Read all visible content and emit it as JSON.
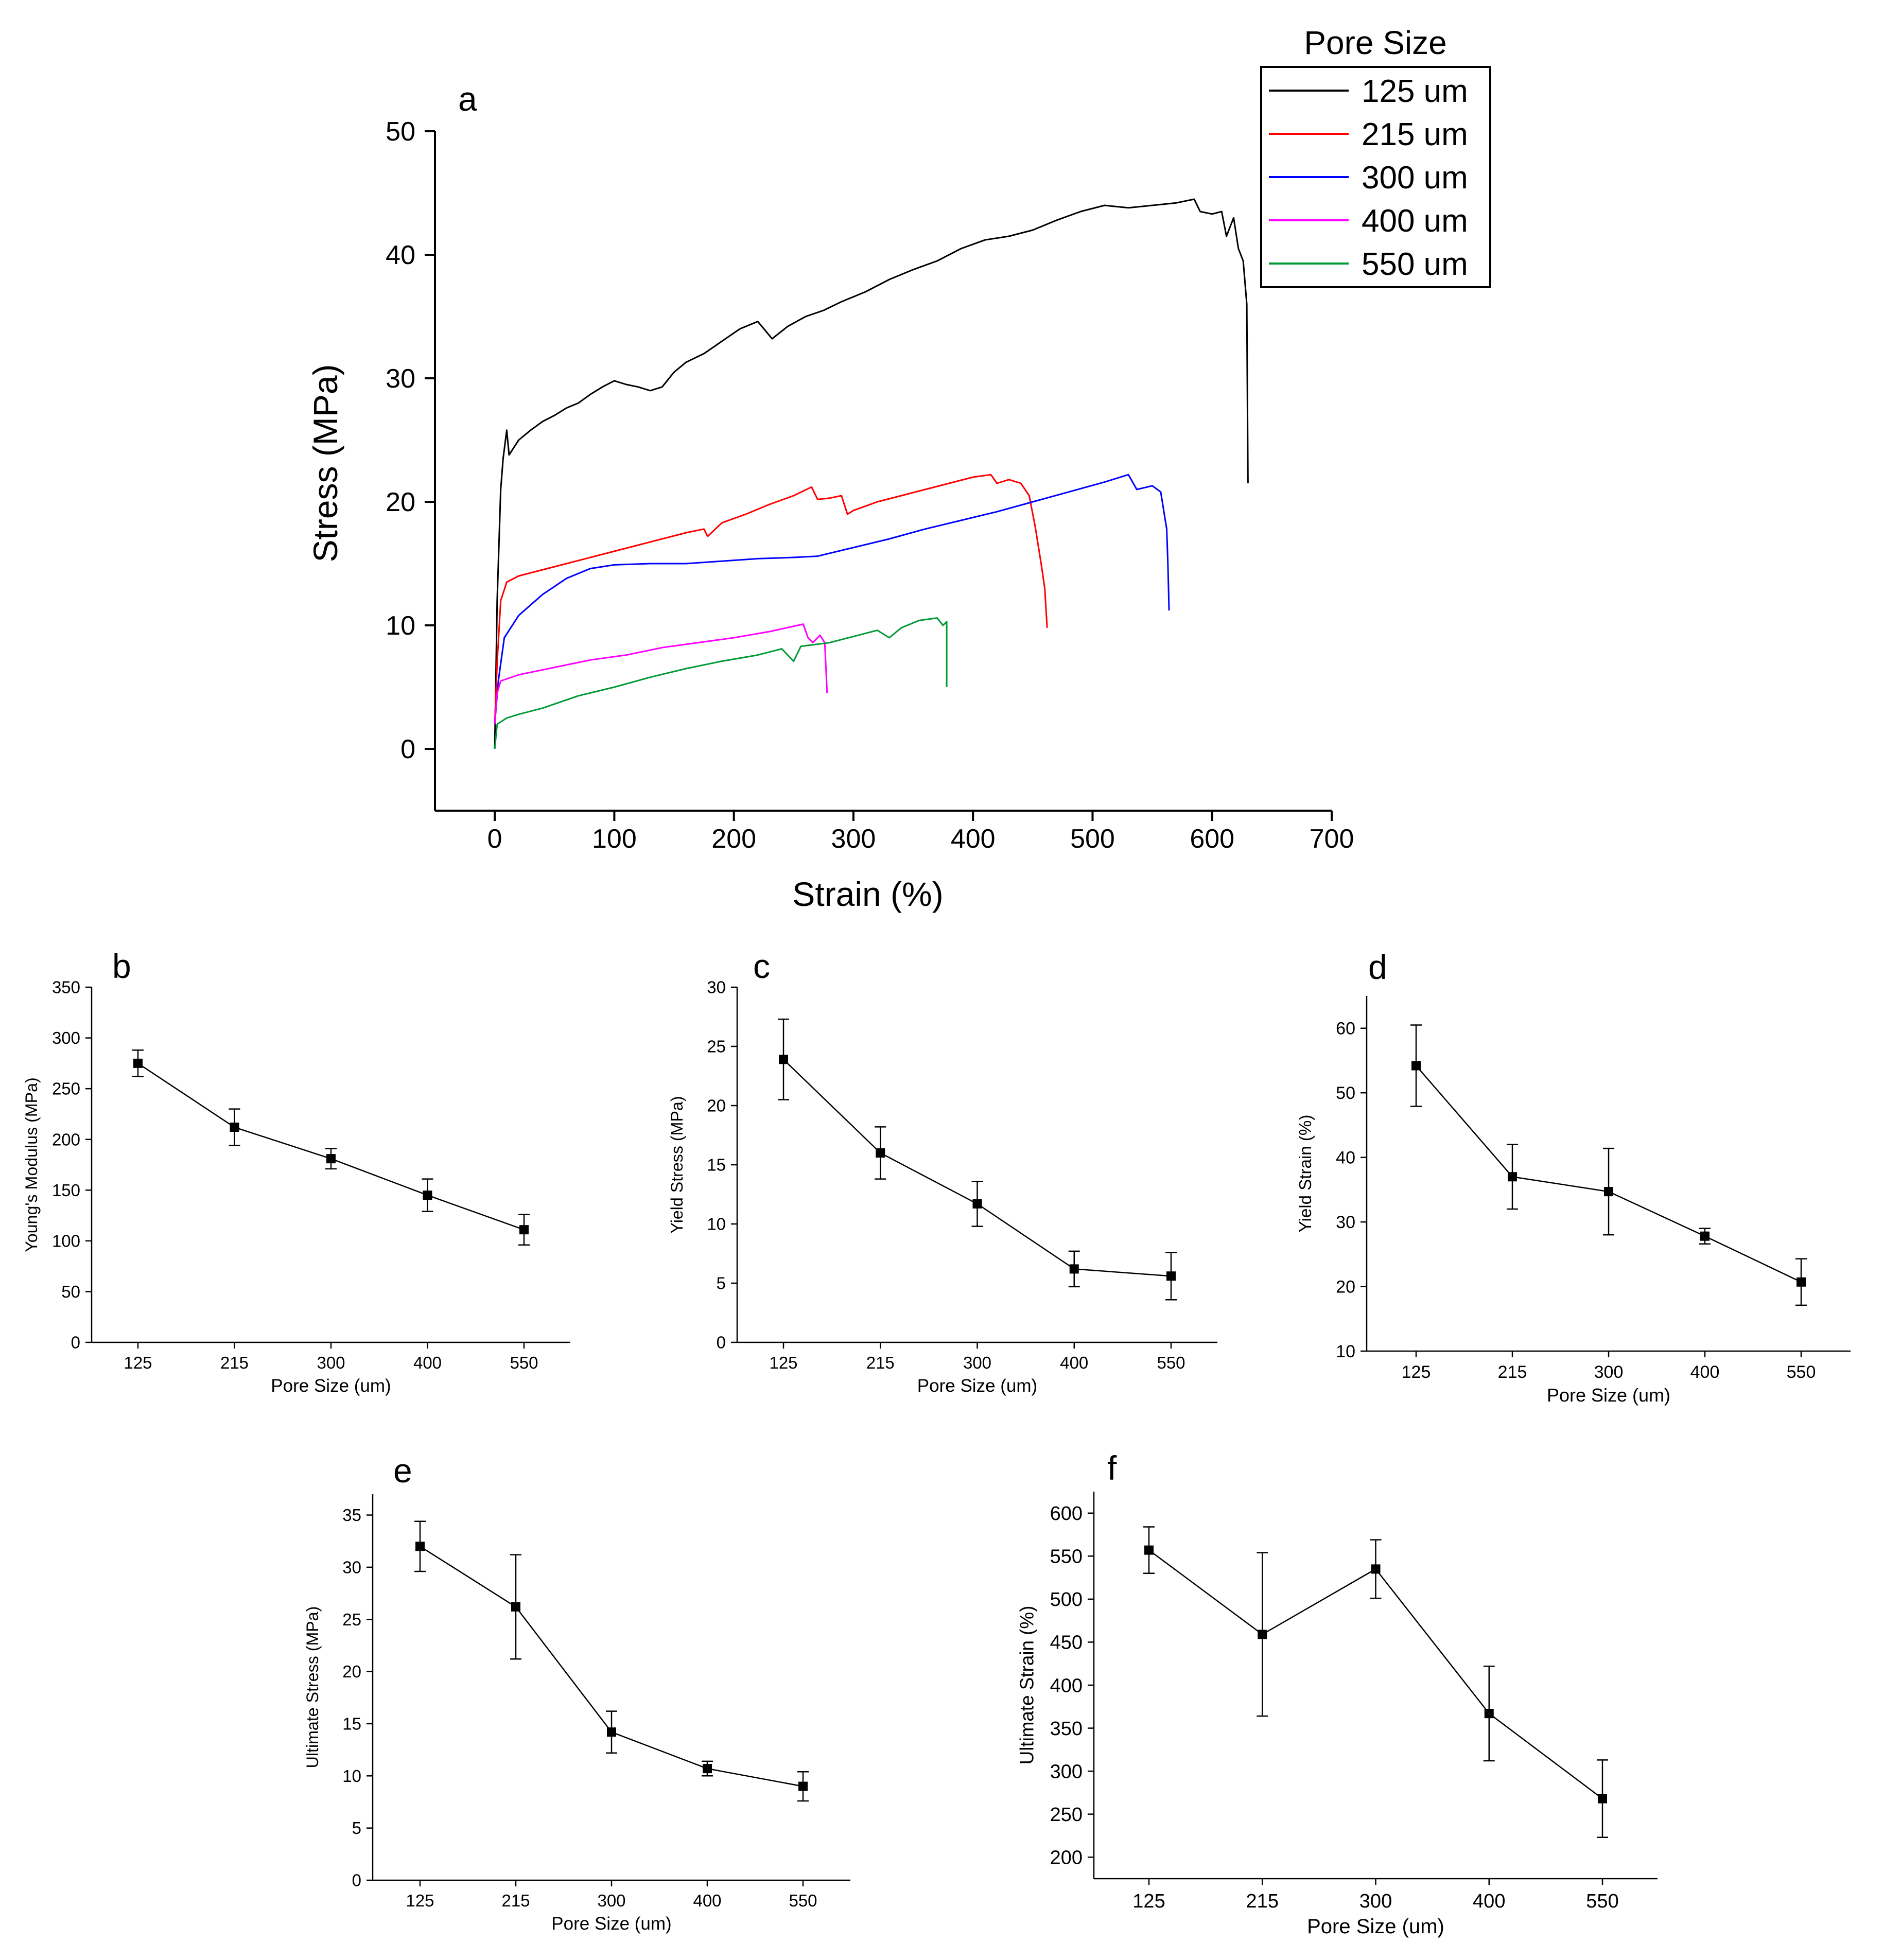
{
  "figure": {
    "background": "#ffffff",
    "axis_color": "#000000"
  },
  "chart_data": [
    {
      "id": "a",
      "panel_label": "a",
      "type": "line",
      "title": "",
      "xlabel": "Strain (%)",
      "ylabel": "Stress (MPa)",
      "xlim": [
        -50,
        700
      ],
      "ylim": [
        -5,
        50
      ],
      "xticks": [
        0,
        100,
        200,
        300,
        400,
        500,
        600,
        700
      ],
      "yticks": [
        0,
        10,
        20,
        30,
        40,
        50
      ],
      "grid": false,
      "legend": {
        "title": "Pore Size",
        "position": "top-right"
      },
      "series": [
        {
          "name": "125 um",
          "color": "#000000",
          "points": [
            [
              0,
              0
            ],
            [
              2,
              12
            ],
            [
              5,
              21
            ],
            [
              7,
              23.5
            ],
            [
              10,
              25.8
            ],
            [
              12,
              23.8
            ],
            [
              20,
              25
            ],
            [
              30,
              25.8
            ],
            [
              40,
              26.5
            ],
            [
              50,
              27
            ],
            [
              60,
              27.6
            ],
            [
              70,
              28
            ],
            [
              80,
              28.7
            ],
            [
              90,
              29.3
            ],
            [
              100,
              29.8
            ],
            [
              110,
              29.5
            ],
            [
              120,
              29.3
            ],
            [
              130,
              29
            ],
            [
              140,
              29.3
            ],
            [
              150,
              30.5
            ],
            [
              160,
              31.3
            ],
            [
              175,
              32
            ],
            [
              190,
              33
            ],
            [
              205,
              34
            ],
            [
              220,
              34.6
            ],
            [
              232,
              33.2
            ],
            [
              245,
              34.2
            ],
            [
              260,
              35
            ],
            [
              275,
              35.5
            ],
            [
              290,
              36.2
            ],
            [
              310,
              37
            ],
            [
              330,
              38
            ],
            [
              350,
              38.8
            ],
            [
              370,
              39.5
            ],
            [
              390,
              40.5
            ],
            [
              410,
              41.2
            ],
            [
              430,
              41.5
            ],
            [
              450,
              42
            ],
            [
              470,
              42.8
            ],
            [
              490,
              43.5
            ],
            [
              510,
              44
            ],
            [
              530,
              43.8
            ],
            [
              550,
              44
            ],
            [
              570,
              44.2
            ],
            [
              585,
              44.5
            ],
            [
              590,
              43.5
            ],
            [
              600,
              43.3
            ],
            [
              608,
              43.5
            ],
            [
              612,
              41.5
            ],
            [
              618,
              43
            ],
            [
              622,
              40.5
            ],
            [
              626,
              39.5
            ],
            [
              629,
              36
            ],
            [
              630,
              21.5
            ]
          ]
        },
        {
          "name": "215 um",
          "color": "#ff0000",
          "points": [
            [
              0,
              2
            ],
            [
              2,
              7
            ],
            [
              5,
              12
            ],
            [
              10,
              13.5
            ],
            [
              20,
              14
            ],
            [
              40,
              14.5
            ],
            [
              60,
              15
            ],
            [
              80,
              15.5
            ],
            [
              100,
              16
            ],
            [
              120,
              16.5
            ],
            [
              140,
              17
            ],
            [
              160,
              17.5
            ],
            [
              175,
              17.8
            ],
            [
              178,
              17.2
            ],
            [
              190,
              18.3
            ],
            [
              210,
              19
            ],
            [
              230,
              19.8
            ],
            [
              250,
              20.5
            ],
            [
              265,
              21.2
            ],
            [
              270,
              20.2
            ],
            [
              280,
              20.3
            ],
            [
              290,
              20.5
            ],
            [
              295,
              19
            ],
            [
              300,
              19.3
            ],
            [
              320,
              20
            ],
            [
              340,
              20.5
            ],
            [
              360,
              21
            ],
            [
              380,
              21.5
            ],
            [
              400,
              22
            ],
            [
              415,
              22.2
            ],
            [
              420,
              21.5
            ],
            [
              430,
              21.8
            ],
            [
              440,
              21.5
            ],
            [
              447,
              20.5
            ],
            [
              452,
              18
            ],
            [
              457,
              15
            ],
            [
              460,
              13
            ],
            [
              462,
              9.8
            ]
          ]
        },
        {
          "name": "300 um",
          "color": "#0000ff",
          "points": [
            [
              0,
              2
            ],
            [
              3,
              5.5
            ],
            [
              8,
              9
            ],
            [
              20,
              10.8
            ],
            [
              40,
              12.5
            ],
            [
              60,
              13.8
            ],
            [
              80,
              14.6
            ],
            [
              100,
              14.9
            ],
            [
              130,
              15
            ],
            [
              160,
              15
            ],
            [
              190,
              15.2
            ],
            [
              220,
              15.4
            ],
            [
              250,
              15.5
            ],
            [
              270,
              15.6
            ],
            [
              300,
              16.3
            ],
            [
              330,
              17
            ],
            [
              360,
              17.8
            ],
            [
              390,
              18.5
            ],
            [
              420,
              19.2
            ],
            [
              450,
              20
            ],
            [
              480,
              20.8
            ],
            [
              510,
              21.6
            ],
            [
              530,
              22.2
            ],
            [
              537,
              21
            ],
            [
              550,
              21.3
            ],
            [
              557,
              20.8
            ],
            [
              562,
              17.8
            ],
            [
              563,
              15
            ],
            [
              564,
              11.2
            ]
          ]
        },
        {
          "name": "400 um",
          "color": "#ff00ff",
          "points": [
            [
              0,
              2
            ],
            [
              2,
              4.5
            ],
            [
              5,
              5.5
            ],
            [
              20,
              6
            ],
            [
              50,
              6.6
            ],
            [
              80,
              7.2
            ],
            [
              110,
              7.6
            ],
            [
              140,
              8.2
            ],
            [
              170,
              8.6
            ],
            [
              200,
              9
            ],
            [
              230,
              9.5
            ],
            [
              258,
              10.1
            ],
            [
              262,
              9
            ],
            [
              266,
              8.6
            ],
            [
              272,
              9.2
            ],
            [
              276,
              8.6
            ],
            [
              278,
              4.5
            ]
          ]
        },
        {
          "name": "550 um",
          "color": "#009933",
          "points": [
            [
              0,
              0
            ],
            [
              2,
              2
            ],
            [
              10,
              2.5
            ],
            [
              20,
              2.8
            ],
            [
              40,
              3.3
            ],
            [
              70,
              4.3
            ],
            [
              100,
              5
            ],
            [
              130,
              5.8
            ],
            [
              160,
              6.5
            ],
            [
              190,
              7.1
            ],
            [
              220,
              7.6
            ],
            [
              240,
              8.1
            ],
            [
              250,
              7.1
            ],
            [
              256,
              8.3
            ],
            [
              280,
              8.6
            ],
            [
              300,
              9.1
            ],
            [
              320,
              9.6
            ],
            [
              330,
              9
            ],
            [
              340,
              9.8
            ],
            [
              355,
              10.4
            ],
            [
              370,
              10.6
            ],
            [
              375,
              10
            ],
            [
              378,
              10.3
            ],
            [
              378,
              5
            ]
          ]
        }
      ]
    },
    {
      "id": "b",
      "panel_label": "b",
      "type": "line",
      "title": "",
      "xlabel": "Pore Size (um)",
      "ylabel": "Young's Modulus (MPa)",
      "categories": [
        "125",
        "215",
        "300",
        "400",
        "550"
      ],
      "ylim": [
        0,
        350
      ],
      "yticks": [
        0,
        50,
        100,
        150,
        200,
        250,
        300,
        350
      ],
      "grid": false,
      "values": [
        275,
        212,
        181,
        145,
        111
      ],
      "errors": [
        13,
        18,
        10,
        16,
        15
      ]
    },
    {
      "id": "c",
      "panel_label": "c",
      "type": "line",
      "title": "",
      "xlabel": "Pore Size (um)",
      "ylabel": "Yield Stress (MPa)",
      "categories": [
        "125",
        "215",
        "300",
        "400",
        "550"
      ],
      "ylim": [
        0,
        30
      ],
      "yticks": [
        0,
        5,
        10,
        15,
        20,
        25,
        30
      ],
      "grid": false,
      "values": [
        23.9,
        16,
        11.7,
        6.2,
        5.6
      ],
      "errors": [
        3.4,
        2.2,
        1.9,
        1.5,
        2
      ]
    },
    {
      "id": "d",
      "panel_label": "d",
      "type": "line",
      "title": "",
      "xlabel": "Pore Size (um)",
      "ylabel": "Yield Strain (%)",
      "categories": [
        "125",
        "215",
        "300",
        "400",
        "550"
      ],
      "ylim": [
        10,
        65
      ],
      "yticks": [
        10,
        20,
        30,
        40,
        50,
        60
      ],
      "grid": false,
      "values": [
        54.2,
        37,
        34.7,
        27.8,
        20.7
      ],
      "errors": [
        6.3,
        5,
        6.7,
        1.2,
        3.6
      ]
    },
    {
      "id": "e",
      "panel_label": "e",
      "type": "line",
      "title": "",
      "xlabel": "Pore Size (um)",
      "ylabel": "Ultimate Stress (MPa)",
      "categories": [
        "125",
        "215",
        "300",
        "400",
        "550"
      ],
      "ylim": [
        0,
        37
      ],
      "yticks": [
        0,
        5,
        10,
        15,
        20,
        25,
        30,
        35
      ],
      "grid": false,
      "values": [
        32,
        26.2,
        14.2,
        10.7,
        9
      ],
      "errors": [
        2.4,
        5,
        2,
        0.7,
        1.4
      ]
    },
    {
      "id": "f",
      "panel_label": "f",
      "type": "line",
      "title": "",
      "xlabel": "Pore Size (um)",
      "ylabel": "Ultimate Strain (%)",
      "categories": [
        "125",
        "215",
        "300",
        "400",
        "550"
      ],
      "ylim": [
        175,
        625
      ],
      "yticks": [
        200,
        250,
        300,
        350,
        400,
        450,
        500,
        550,
        600
      ],
      "grid": false,
      "values": [
        557,
        459,
        535,
        367,
        268
      ],
      "errors": [
        27,
        95,
        34,
        55,
        45
      ]
    }
  ]
}
